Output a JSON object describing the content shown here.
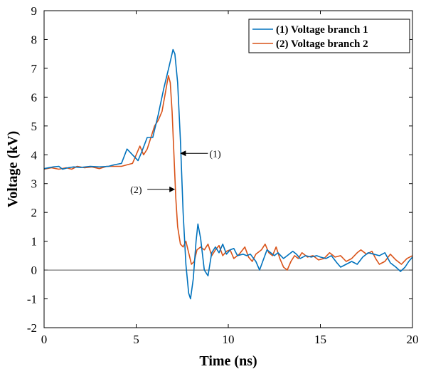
{
  "chart_data": {
    "type": "line",
    "xlabel": "Time (ns)",
    "ylabel": "Voltage (kV)",
    "xlim": [
      0,
      20
    ],
    "ylim": [
      -2,
      9
    ],
    "x_ticks": [
      "0",
      "5",
      "10",
      "15",
      "20"
    ],
    "y_ticks": [
      "-2",
      "-1",
      "0",
      "1",
      "2",
      "3",
      "4",
      "5",
      "6",
      "7",
      "8",
      "9"
    ],
    "grid": false,
    "legend_position": "top-right",
    "reference_line_y": 0,
    "colors": {
      "series1": "#0072bd",
      "series2": "#d95319",
      "zero_line": "#555555"
    },
    "series": [
      {
        "name": "(1) Voltage branch 1",
        "points": [
          [
            0,
            3.52
          ],
          [
            0.5,
            3.58
          ],
          [
            0.8,
            3.6
          ],
          [
            1.0,
            3.5
          ],
          [
            1.3,
            3.55
          ],
          [
            1.6,
            3.58
          ],
          [
            2.0,
            3.56
          ],
          [
            2.5,
            3.6
          ],
          [
            3.0,
            3.58
          ],
          [
            3.5,
            3.6
          ],
          [
            3.8,
            3.65
          ],
          [
            4.2,
            3.7
          ],
          [
            4.5,
            4.2
          ],
          [
            4.8,
            4.0
          ],
          [
            5.1,
            3.8
          ],
          [
            5.3,
            4.1
          ],
          [
            5.6,
            4.6
          ],
          [
            5.9,
            4.6
          ],
          [
            6.2,
            5.4
          ],
          [
            6.5,
            6.3
          ],
          [
            6.8,
            7.1
          ],
          [
            7.0,
            7.65
          ],
          [
            7.1,
            7.5
          ],
          [
            7.25,
            6.5
          ],
          [
            7.4,
            4.5
          ],
          [
            7.55,
            2.0
          ],
          [
            7.7,
            0.2
          ],
          [
            7.85,
            -0.8
          ],
          [
            7.95,
            -1.0
          ],
          [
            8.1,
            -0.3
          ],
          [
            8.25,
            1.0
          ],
          [
            8.35,
            1.6
          ],
          [
            8.5,
            1.1
          ],
          [
            8.7,
            0.0
          ],
          [
            8.9,
            -0.2
          ],
          [
            9.1,
            0.6
          ],
          [
            9.3,
            0.8
          ],
          [
            9.5,
            0.6
          ],
          [
            9.7,
            0.9
          ],
          [
            9.9,
            0.55
          ],
          [
            10.1,
            0.7
          ],
          [
            10.3,
            0.75
          ],
          [
            10.5,
            0.5
          ],
          [
            10.8,
            0.55
          ],
          [
            11.0,
            0.5
          ],
          [
            11.2,
            0.55
          ],
          [
            11.5,
            0.3
          ],
          [
            11.7,
            0.0
          ],
          [
            11.9,
            0.35
          ],
          [
            12.1,
            0.7
          ],
          [
            12.3,
            0.6
          ],
          [
            12.5,
            0.5
          ],
          [
            12.7,
            0.6
          ],
          [
            13.0,
            0.4
          ],
          [
            13.2,
            0.5
          ],
          [
            13.5,
            0.65
          ],
          [
            13.7,
            0.55
          ],
          [
            13.9,
            0.4
          ],
          [
            14.2,
            0.5
          ],
          [
            14.5,
            0.45
          ],
          [
            14.8,
            0.5
          ],
          [
            15.0,
            0.45
          ],
          [
            15.3,
            0.4
          ],
          [
            15.6,
            0.5
          ],
          [
            15.9,
            0.25
          ],
          [
            16.1,
            0.1
          ],
          [
            16.4,
            0.2
          ],
          [
            16.7,
            0.3
          ],
          [
            17.0,
            0.2
          ],
          [
            17.3,
            0.45
          ],
          [
            17.6,
            0.6
          ],
          [
            17.9,
            0.55
          ],
          [
            18.2,
            0.5
          ],
          [
            18.5,
            0.6
          ],
          [
            18.8,
            0.25
          ],
          [
            19.1,
            0.1
          ],
          [
            19.35,
            -0.05
          ],
          [
            19.6,
            0.1
          ],
          [
            19.8,
            0.3
          ],
          [
            20.0,
            0.45
          ]
        ]
      },
      {
        "name": "(2) Voltage branch 2",
        "points": [
          [
            0,
            3.5
          ],
          [
            0.4,
            3.55
          ],
          [
            0.8,
            3.5
          ],
          [
            1.2,
            3.55
          ],
          [
            1.5,
            3.5
          ],
          [
            1.8,
            3.6
          ],
          [
            2.2,
            3.55
          ],
          [
            2.6,
            3.58
          ],
          [
            3.0,
            3.52
          ],
          [
            3.4,
            3.6
          ],
          [
            3.8,
            3.6
          ],
          [
            4.2,
            3.6
          ],
          [
            4.5,
            3.65
          ],
          [
            4.8,
            3.7
          ],
          [
            5.0,
            4.0
          ],
          [
            5.2,
            4.3
          ],
          [
            5.4,
            4.0
          ],
          [
            5.6,
            4.2
          ],
          [
            5.8,
            4.6
          ],
          [
            6.0,
            5.0
          ],
          [
            6.2,
            5.2
          ],
          [
            6.4,
            5.5
          ],
          [
            6.6,
            6.2
          ],
          [
            6.75,
            6.75
          ],
          [
            6.85,
            6.5
          ],
          [
            6.95,
            5.5
          ],
          [
            7.05,
            4.0
          ],
          [
            7.15,
            2.5
          ],
          [
            7.25,
            1.5
          ],
          [
            7.4,
            0.9
          ],
          [
            7.55,
            0.8
          ],
          [
            7.7,
            1.0
          ],
          [
            7.85,
            0.6
          ],
          [
            8.0,
            0.2
          ],
          [
            8.15,
            0.3
          ],
          [
            8.3,
            0.7
          ],
          [
            8.5,
            0.8
          ],
          [
            8.7,
            0.7
          ],
          [
            8.9,
            0.9
          ],
          [
            9.1,
            0.5
          ],
          [
            9.3,
            0.7
          ],
          [
            9.5,
            0.85
          ],
          [
            9.7,
            0.5
          ],
          [
            9.9,
            0.65
          ],
          [
            10.1,
            0.7
          ],
          [
            10.3,
            0.4
          ],
          [
            10.6,
            0.55
          ],
          [
            10.9,
            0.8
          ],
          [
            11.1,
            0.45
          ],
          [
            11.3,
            0.3
          ],
          [
            11.5,
            0.55
          ],
          [
            11.8,
            0.7
          ],
          [
            12.0,
            0.9
          ],
          [
            12.2,
            0.6
          ],
          [
            12.4,
            0.5
          ],
          [
            12.6,
            0.8
          ],
          [
            12.8,
            0.4
          ],
          [
            13.0,
            0.1
          ],
          [
            13.2,
            0.0
          ],
          [
            13.4,
            0.3
          ],
          [
            13.6,
            0.5
          ],
          [
            13.8,
            0.4
          ],
          [
            14.0,
            0.6
          ],
          [
            14.3,
            0.45
          ],
          [
            14.6,
            0.5
          ],
          [
            14.9,
            0.35
          ],
          [
            15.2,
            0.4
          ],
          [
            15.5,
            0.6
          ],
          [
            15.8,
            0.45
          ],
          [
            16.1,
            0.5
          ],
          [
            16.4,
            0.3
          ],
          [
            16.7,
            0.4
          ],
          [
            17.0,
            0.6
          ],
          [
            17.2,
            0.7
          ],
          [
            17.5,
            0.55
          ],
          [
            17.8,
            0.65
          ],
          [
            18.0,
            0.4
          ],
          [
            18.2,
            0.2
          ],
          [
            18.5,
            0.3
          ],
          [
            18.8,
            0.55
          ],
          [
            19.1,
            0.35
          ],
          [
            19.4,
            0.2
          ],
          [
            19.7,
            0.4
          ],
          [
            20.0,
            0.5
          ]
        ]
      }
    ],
    "annotations": [
      {
        "text": "(1)",
        "arrow_to": [
          7.35,
          4.05
        ]
      },
      {
        "text": "(2)",
        "arrow_to": [
          7.15,
          2.8
        ]
      }
    ]
  }
}
